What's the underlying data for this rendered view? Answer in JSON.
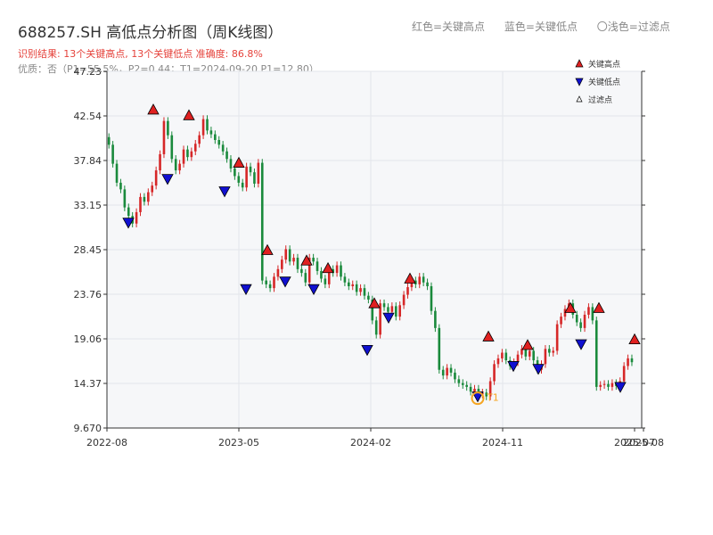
{
  "header": {
    "title": "688257.SH 高低点分析图（周K线图）",
    "legend_red": "红色=关键高点",
    "legend_blue": "蓝色=关键低点",
    "legend_light": "〇浅色=过滤点",
    "result": "识别结果: 13个关键高点, 13个关键低点   准确度: 86.8%",
    "quality": "优质：否（P1=55.5%，P2=0.44；T1=2024-09-20 P1=12.80）"
  },
  "colors": {
    "up": "#d62728",
    "down": "#1a8a3c",
    "high_marker": "#e02020",
    "low_marker": "#1010d0",
    "t1": "#f5a623",
    "plot_bg": "#f6f7f9",
    "grid": "#e3e6ea"
  },
  "chart_data": {
    "type": "candlestick",
    "title": "688257.SH 高低点分析图（周K线图）",
    "y_ticks": [
      "47.23",
      "42.54",
      "37.84",
      "33.15",
      "28.45",
      "23.76",
      "19.06",
      "14.37",
      "9.670"
    ],
    "ylim": [
      9.67,
      47.23
    ],
    "x_ticks": [
      "2022-08",
      "2023-05",
      "2024-02",
      "2024-11",
      "2025-07",
      "2025-08"
    ],
    "grid": true,
    "legend": {
      "placement": "top-right",
      "items": [
        "关键高点",
        "关键低点",
        "过滤点"
      ]
    },
    "close_series": [
      39.5,
      37.5,
      35.5,
      34.8,
      32.9,
      32.0,
      31.2,
      32.4,
      34.0,
      33.5,
      34.5,
      35.2,
      36.8,
      38.5,
      42.0,
      40.5,
      38.0,
      36.8,
      37.5,
      39.0,
      38.2,
      38.8,
      39.6,
      40.5,
      42.2,
      41.0,
      40.6,
      40.0,
      39.5,
      38.8,
      38.0,
      37.0,
      36.2,
      35.5,
      35.0,
      37.2,
      36.6,
      35.4,
      37.6,
      25.2,
      24.8,
      24.4,
      25.6,
      26.4,
      27.4,
      28.5,
      27.2,
      27.6,
      26.4,
      26.0,
      25.0,
      27.6,
      27.2,
      26.2,
      25.4,
      24.8,
      26.4,
      26.0,
      26.8,
      25.6,
      25.0,
      24.6,
      24.8,
      24.0,
      24.4,
      23.6,
      23.2,
      21.0,
      19.5,
      22.8,
      22.4,
      21.9,
      22.5,
      21.4,
      22.6,
      23.7,
      24.5,
      25.2,
      24.8,
      25.6,
      25.0,
      24.6,
      22.0,
      20.2,
      15.8,
      15.2,
      16.0,
      15.5,
      14.8,
      14.4,
      14.2,
      14.0,
      13.5,
      13.8,
      13.2,
      13.4,
      13.0,
      14.6,
      16.4,
      17.0,
      17.6,
      16.8,
      16.2,
      16.6,
      17.4,
      18.0,
      17.2,
      17.8,
      16.8,
      15.8,
      16.4,
      18.0,
      17.6,
      17.8,
      20.6,
      21.4,
      22.2,
      22.8,
      21.6,
      20.8,
      20.2,
      21.6,
      22.4,
      21.0,
      14.0,
      14.2,
      14.3,
      14.0,
      14.4,
      14.1,
      14.6,
      16.2,
      17.0,
      16.6
    ],
    "key_highs": [
      {
        "x": 172,
        "y": 43.2
      },
      {
        "x": 212,
        "y": 42.6
      },
      {
        "x": 268,
        "y": 37.6
      },
      {
        "x": 300,
        "y": 28.4
      },
      {
        "x": 344,
        "y": 27.3
      },
      {
        "x": 368,
        "y": 26.5
      },
      {
        "x": 420,
        "y": 22.8
      },
      {
        "x": 460,
        "y": 25.4
      },
      {
        "x": 548,
        "y": 19.3
      },
      {
        "x": 592,
        "y": 18.4
      },
      {
        "x": 640,
        "y": 22.3
      },
      {
        "x": 672,
        "y": 22.3
      },
      {
        "x": 712,
        "y": 19.0
      }
    ],
    "key_lows": [
      {
        "x": 144,
        "y": 31.3
      },
      {
        "x": 188,
        "y": 35.9
      },
      {
        "x": 252,
        "y": 34.6
      },
      {
        "x": 276,
        "y": 24.3
      },
      {
        "x": 320,
        "y": 25.1
      },
      {
        "x": 352,
        "y": 24.3
      },
      {
        "x": 412,
        "y": 17.9
      },
      {
        "x": 436,
        "y": 21.3
      },
      {
        "x": 536,
        "y": 13.0
      },
      {
        "x": 576,
        "y": 16.2
      },
      {
        "x": 604,
        "y": 15.9
      },
      {
        "x": 652,
        "y": 18.5
      },
      {
        "x": 696,
        "y": 14.0
      }
    ],
    "t1": {
      "label": "T1",
      "date": "2024-09-20",
      "value": 12.8
    }
  }
}
